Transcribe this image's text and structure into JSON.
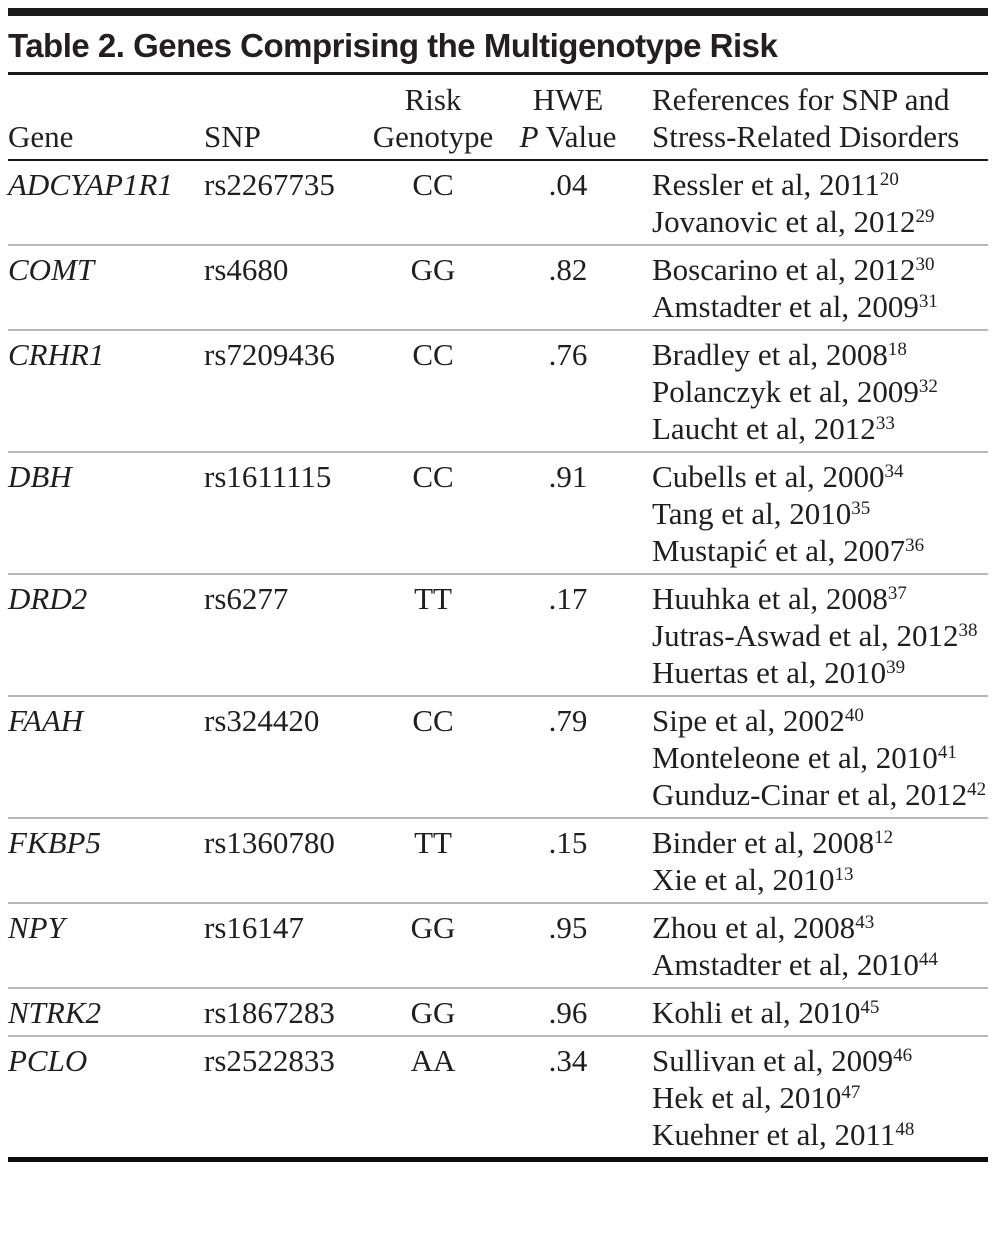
{
  "table": {
    "title": "Table 2. Genes Comprising the Multigenotype Risk",
    "header": {
      "gene": {
        "line2": "Gene"
      },
      "snp": {
        "line2": "SNP"
      },
      "genotype": {
        "line1": "Risk",
        "line2": "Genotype"
      },
      "pvalue": {
        "line1": "HWE",
        "line2_italic": "P",
        "line2_word": "Value"
      },
      "references": {
        "line1": "References for SNP and",
        "line2": "Stress-Related Disorders"
      }
    },
    "rows": [
      {
        "gene": "ADCYAP1R1",
        "snp": "rs2267735",
        "risk_genotype": "CC",
        "hwe_p_value": ".04",
        "references": [
          {
            "text": "Ressler et al, 2011",
            "sup": "20"
          },
          {
            "text": "Jovanovic et al, 2012",
            "sup": "29"
          }
        ]
      },
      {
        "gene": "COMT",
        "snp": "rs4680",
        "risk_genotype": "GG",
        "hwe_p_value": ".82",
        "references": [
          {
            "text": "Boscarino et al, 2012",
            "sup": "30"
          },
          {
            "text": "Amstadter et al, 2009",
            "sup": "31"
          }
        ]
      },
      {
        "gene": "CRHR1",
        "snp": "rs7209436",
        "risk_genotype": "CC",
        "hwe_p_value": ".76",
        "references": [
          {
            "text": "Bradley et al, 2008",
            "sup": "18"
          },
          {
            "text": "Polanczyk et al, 2009",
            "sup": "32"
          },
          {
            "text": "Laucht et al, 2012",
            "sup": "33"
          }
        ]
      },
      {
        "gene": "DBH",
        "snp": "rs1611115",
        "risk_genotype": "CC",
        "hwe_p_value": ".91",
        "references": [
          {
            "text": "Cubells et al, 2000",
            "sup": "34"
          },
          {
            "text": "Tang et al, 2010",
            "sup": "35"
          },
          {
            "text": "Mustapić et al, 2007",
            "sup": "36"
          }
        ]
      },
      {
        "gene": "DRD2",
        "snp": "rs6277",
        "risk_genotype": "TT",
        "hwe_p_value": ".17",
        "references": [
          {
            "text": "Huuhka et al, 2008",
            "sup": "37"
          },
          {
            "text": "Jutras-Aswad et al, 2012",
            "sup": "38"
          },
          {
            "text": "Huertas et al, 2010",
            "sup": "39"
          }
        ]
      },
      {
        "gene": "FAAH",
        "snp": "rs324420",
        "risk_genotype": "CC",
        "hwe_p_value": ".79",
        "references": [
          {
            "text": "Sipe et al, 2002",
            "sup": "40"
          },
          {
            "text": "Monteleone et al, 2010",
            "sup": "41"
          },
          {
            "text": "Gunduz-Cinar et al, 2012",
            "sup": "42"
          }
        ]
      },
      {
        "gene": "FKBP5",
        "snp": "rs1360780",
        "risk_genotype": "TT",
        "hwe_p_value": ".15",
        "references": [
          {
            "text": "Binder et al, 2008",
            "sup": "12"
          },
          {
            "text": "Xie et al, 2010",
            "sup": "13"
          }
        ]
      },
      {
        "gene": "NPY",
        "snp": "rs16147",
        "risk_genotype": "GG",
        "hwe_p_value": ".95",
        "references": [
          {
            "text": "Zhou et al, 2008",
            "sup": "43"
          },
          {
            "text": "Amstadter et al, 2010",
            "sup": "44"
          }
        ]
      },
      {
        "gene": "NTRK2",
        "snp": "rs1867283",
        "risk_genotype": "GG",
        "hwe_p_value": ".96",
        "references": [
          {
            "text": "Kohli et al, 2010",
            "sup": "45"
          }
        ]
      },
      {
        "gene": "PCLO",
        "snp": "rs2522833",
        "risk_genotype": "AA",
        "hwe_p_value": ".34",
        "references": [
          {
            "text": "Sullivan et al, 2009",
            "sup": "46"
          },
          {
            "text": "Hek et al, 2010",
            "sup": "47"
          },
          {
            "text": "Kuehner et al, 2011",
            "sup": "48"
          }
        ]
      }
    ]
  }
}
